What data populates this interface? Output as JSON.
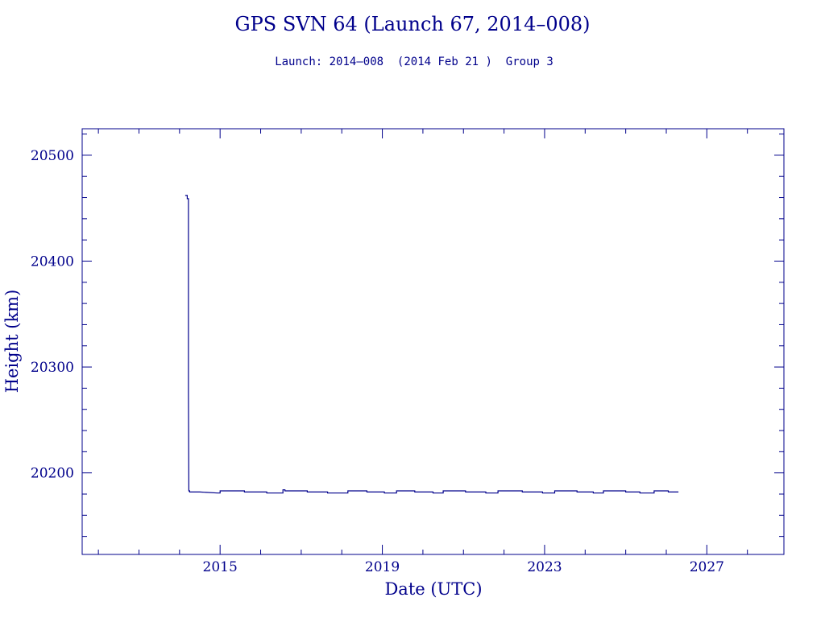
{
  "chart_data": {
    "type": "line",
    "title": "GPS SVN 64 (Launch 67, 2014–008)",
    "subtitle": "Launch: 2014–008  (2014 Feb 21 )  Group 3",
    "xlabel": "Date (UTC)",
    "ylabel": "Height (km)",
    "xlim": [
      2011.6,
      2028.9
    ],
    "ylim": [
      20123,
      20525
    ],
    "x_ticks": [
      2015,
      2019,
      2023,
      2027
    ],
    "x_tick_labels": [
      "2015",
      "2019",
      "2023",
      "2027"
    ],
    "y_ticks": [
      20200,
      20300,
      20400,
      20500
    ],
    "y_tick_labels": [
      "20200",
      "20300",
      "20400",
      "20500"
    ],
    "grid": false,
    "color": "#00008b",
    "series": [
      {
        "x": [
          2014.14,
          2014.19,
          2014.19,
          2014.22,
          2014.22,
          2014.23,
          2014.25,
          2014.25,
          2014.5,
          2014.5,
          2014.94,
          2015.0,
          2015.0,
          2015.6,
          2015.6,
          2016.15,
          2016.15,
          2016.55,
          2016.55,
          2016.6,
          2016.6,
          2017.15,
          2017.15,
          2017.65,
          2017.65,
          2018.15,
          2018.15,
          2018.62,
          2018.62,
          2019.05,
          2019.05,
          2019.35,
          2019.35,
          2019.8,
          2019.8,
          2020.25,
          2020.25,
          2020.5,
          2020.5,
          2021.05,
          2021.05,
          2021.55,
          2021.55,
          2021.85,
          2021.85,
          2022.45,
          2022.45,
          2022.95,
          2022.95,
          2023.25,
          2023.25,
          2023.8,
          2023.8,
          2024.2,
          2024.2,
          2024.45,
          2024.45,
          2025.0,
          2025.0,
          2025.35,
          2025.35,
          2025.7,
          2025.7,
          2025.85,
          2026.05,
          2026.05,
          2026.3
        ],
        "y": [
          20462,
          20462,
          20459,
          20459,
          20275,
          20183,
          20183,
          20182,
          20182,
          20182,
          20181,
          20181,
          20183,
          20183,
          20182,
          20182,
          20181,
          20181,
          20184,
          20184,
          20183,
          20183,
          20182,
          20182,
          20181,
          20181,
          20183,
          20183,
          20182,
          20182,
          20181,
          20181,
          20183,
          20183,
          20182,
          20182,
          20181,
          20181,
          20183,
          20183,
          20182,
          20182,
          20181,
          20181,
          20183,
          20183,
          20182,
          20182,
          20181,
          20181,
          20183,
          20183,
          20182,
          20182,
          20181,
          20181,
          20183,
          20183,
          20182,
          20182,
          20181,
          20181,
          20183,
          20183,
          20183,
          20182,
          20182
        ]
      }
    ]
  }
}
